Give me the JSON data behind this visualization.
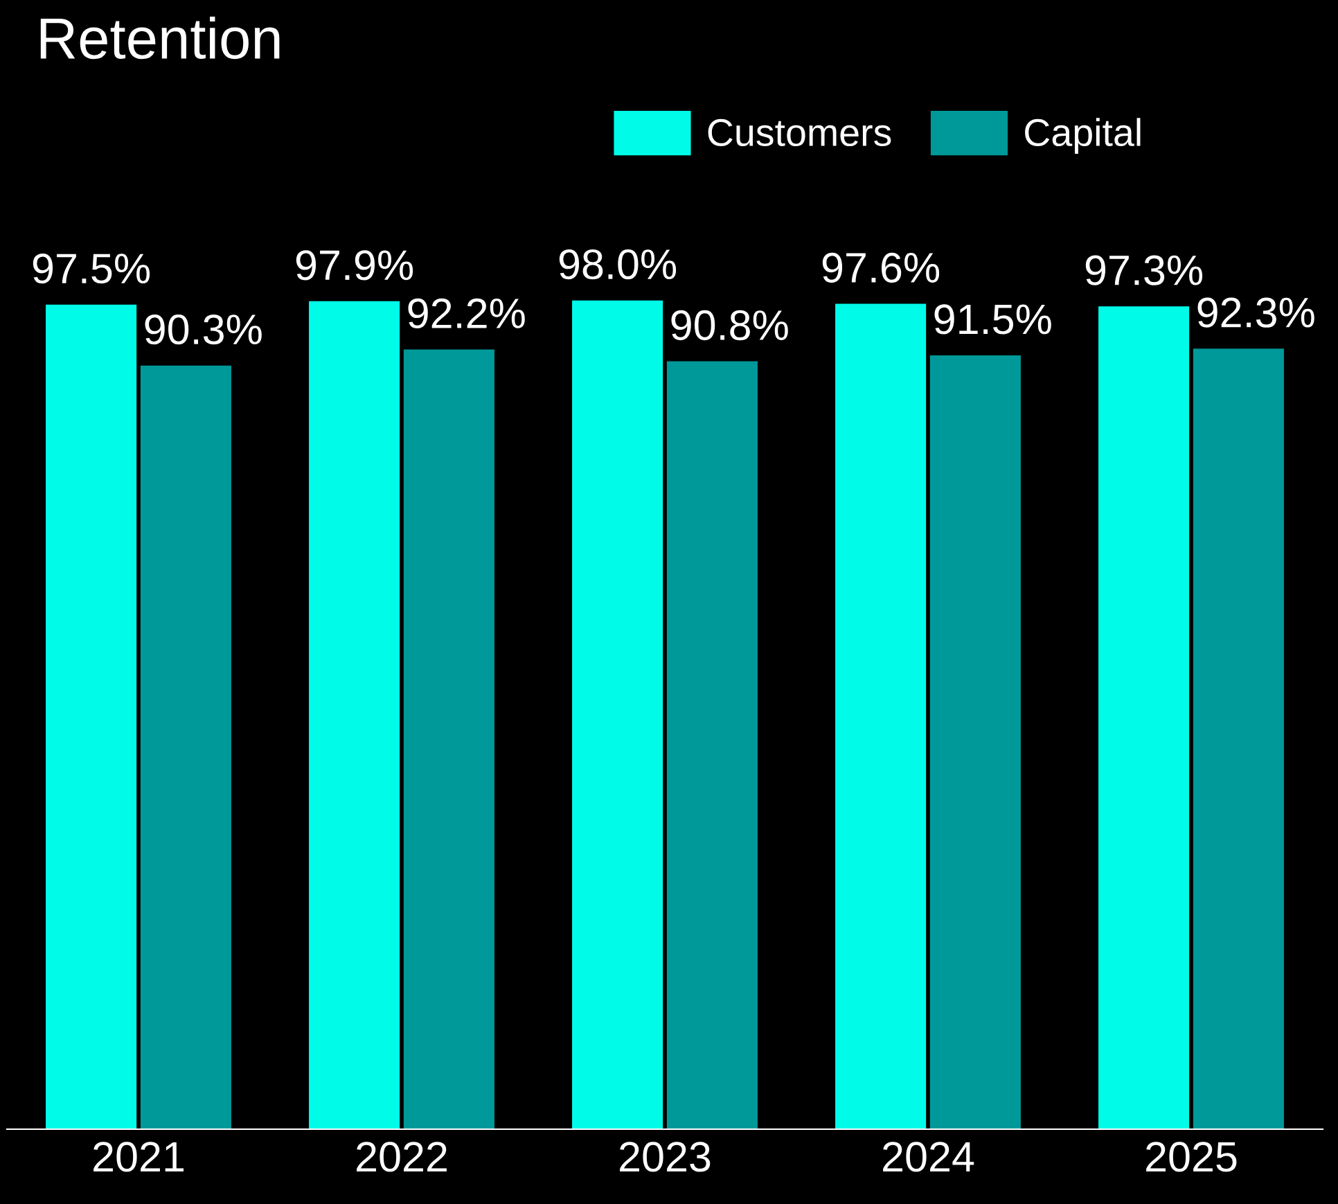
{
  "chart_data": {
    "type": "bar",
    "title": "Retention",
    "categories": [
      "2021",
      "2022",
      "2023",
      "2024",
      "2025"
    ],
    "series": [
      {
        "name": "Customers",
        "color": "#00fbe9",
        "values": [
          97.5,
          97.9,
          98.0,
          97.6,
          97.3
        ],
        "value_labels": [
          "97.5%",
          "97.9%",
          "98.0%",
          "97.6%",
          "97.3%"
        ]
      },
      {
        "name": "Capital",
        "color": "#009999",
        "values": [
          90.3,
          92.2,
          90.8,
          91.5,
          92.3
        ],
        "value_labels": [
          "90.3%",
          "92.2%",
          "90.8%",
          "91.5%",
          "92.3%"
        ]
      }
    ],
    "legend": "top right",
    "grid": false,
    "tick_labels": "x"
  }
}
